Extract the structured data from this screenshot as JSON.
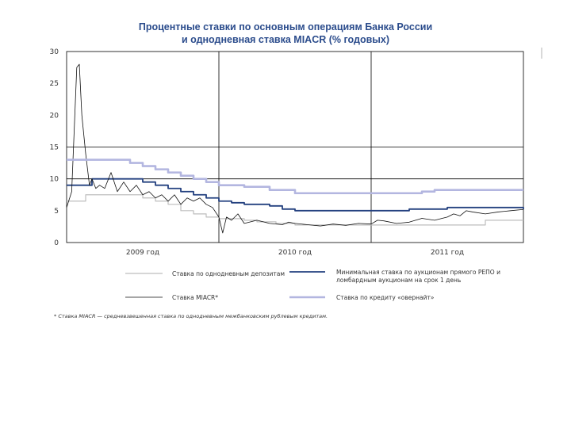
{
  "title_line1": "Процентные ставки по основным операциям Банка России",
  "title_line2": "и однодневная ставка MIACR (% годовых)",
  "footnote": "* Ставка MIACR — средневзвешенная ставка по однодневным межбанковским рублевым кредитам.",
  "chart_data": {
    "type": "line",
    "title": "Процентные ставки по основным операциям Банка России и однодневная ставка MIACR (% годовых)",
    "ylim": [
      0,
      30
    ],
    "yticks": [
      0,
      5,
      10,
      15,
      20,
      25,
      30
    ],
    "xlim": [
      0,
      36
    ],
    "x_units": "months from January 2009",
    "year_labels": [
      {
        "x": 6,
        "label": "2009 год"
      },
      {
        "x": 18,
        "label": "2010 год"
      },
      {
        "x": 30,
        "label": "2011 год"
      }
    ],
    "grid": "horizontal at 15 and 10; vertical at year boundaries",
    "legend_placement": "bottom",
    "series": [
      {
        "name": "Ставка по однодневным депозитам",
        "color": "#bdbdbd",
        "width": 1.2,
        "step": true,
        "x": [
          0,
          1,
          1.5,
          5,
          6,
          7,
          8,
          9,
          10,
          11,
          12,
          14,
          15,
          16.5,
          18,
          30,
          33,
          36
        ],
        "y": [
          6.5,
          6.5,
          7.5,
          7.5,
          7.0,
          6.5,
          6.0,
          5.0,
          4.5,
          4.0,
          3.75,
          3.5,
          3.25,
          3.0,
          2.75,
          2.75,
          3.5,
          3.5
        ]
      },
      {
        "name": "Минимальная ставка по аукционам прямого РЕПО и ломбардным аукционам на срок 1 день",
        "color": "#23407f",
        "width": 1.8,
        "step": true,
        "x": [
          0,
          2,
          4,
          6,
          7,
          8,
          9,
          10,
          11,
          12,
          13,
          14,
          16,
          17,
          18,
          25,
          27,
          30,
          36
        ],
        "y": [
          9,
          10,
          10,
          9.5,
          9,
          8.5,
          8,
          7.5,
          7,
          6.5,
          6.25,
          6.0,
          5.75,
          5.25,
          5.0,
          5.0,
          5.25,
          5.5,
          5.25
        ]
      },
      {
        "name": "Ставка MIACR*",
        "color": "#111111",
        "width": 0.8,
        "step": false,
        "x": [
          0,
          0.4,
          0.8,
          1.0,
          1.2,
          1.5,
          1.8,
          2.0,
          2.3,
          2.6,
          3,
          3.5,
          4,
          4.5,
          5,
          5.5,
          6,
          6.5,
          7,
          7.5,
          8,
          8.5,
          9,
          9.5,
          10,
          10.5,
          11,
          11.5,
          12,
          12.3,
          12.6,
          13,
          13.5,
          14,
          15,
          16,
          17,
          17.5,
          18,
          19,
          20,
          21,
          22,
          23,
          24,
          24.5,
          25,
          26,
          27,
          27.5,
          28,
          29,
          30,
          30.5,
          31,
          31.5,
          32,
          33,
          34,
          35,
          36
        ],
        "y": [
          5.5,
          8,
          27.5,
          28,
          20,
          14,
          9,
          10,
          8.5,
          9,
          8.5,
          11,
          8,
          9.5,
          8,
          9,
          7.5,
          8,
          7,
          7.5,
          6.5,
          7.5,
          6,
          7,
          6.5,
          7,
          6,
          5.5,
          4,
          1.5,
          4,
          3.5,
          4.5,
          3,
          3.5,
          3,
          2.8,
          3.2,
          3,
          2.8,
          2.6,
          2.9,
          2.7,
          3,
          2.9,
          3.5,
          3.4,
          3,
          3.2,
          3.5,
          3.8,
          3.5,
          4,
          4.5,
          4.2,
          5,
          4.8,
          4.5,
          4.8,
          5,
          5.2
        ]
      },
      {
        "name": "Ставка по кредиту «овернайт»",
        "color": "#b3b6e0",
        "width": 2.6,
        "step": true,
        "x": [
          0,
          4,
          5,
          6,
          7,
          8,
          9,
          10,
          11,
          12,
          14,
          16,
          18,
          27,
          28,
          29,
          36
        ],
        "y": [
          13,
          13,
          12.5,
          12,
          11.5,
          11,
          10.5,
          10,
          9.5,
          9,
          8.75,
          8.25,
          7.75,
          7.75,
          8.0,
          8.25,
          8.25
        ]
      }
    ]
  }
}
